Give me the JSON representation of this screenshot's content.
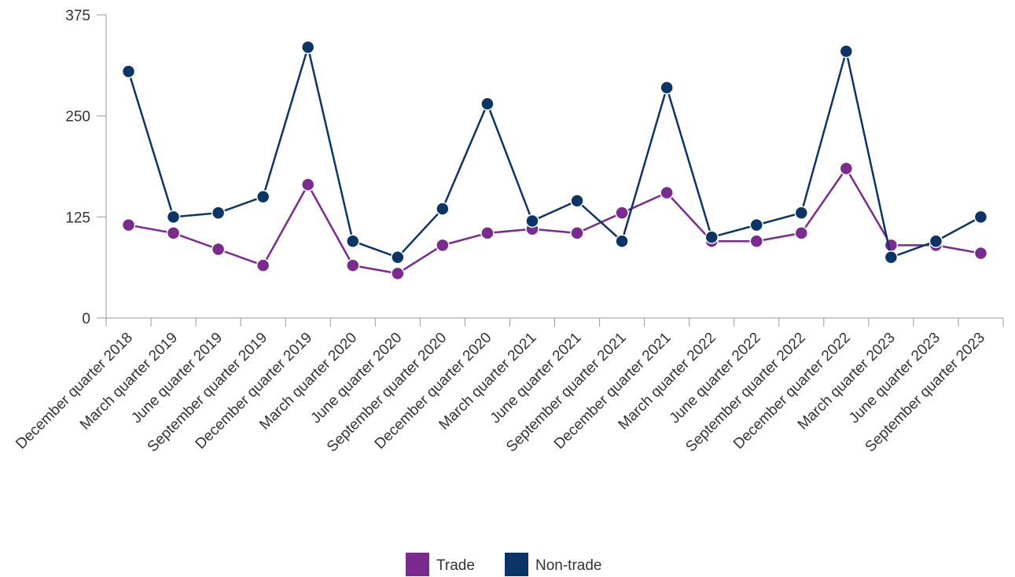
{
  "chart_data": {
    "type": "line",
    "categories": [
      "December quarter 2018",
      "March quarter 2019",
      "June quarter 2019",
      "September quarter 2019",
      "December quarter 2019",
      "March quarter 2020",
      "June quarter 2020",
      "September quarter 2020",
      "December quarter 2020",
      "March quarter 2021",
      "June quarter 2021",
      "September quarter 2021",
      "December quarter 2021",
      "March quarter 2022",
      "June quarter 2022",
      "September quarter 2022",
      "December quarter 2022",
      "March quarter 2023",
      "June quarter 2023",
      "September quarter 2023"
    ],
    "series": [
      {
        "name": "Trade",
        "color": "#7b2a8e",
        "values": [
          115,
          105,
          85,
          65,
          165,
          65,
          55,
          90,
          105,
          110,
          105,
          130,
          155,
          95,
          95,
          105,
          185,
          90,
          90,
          80
        ]
      },
      {
        "name": "Non-trade",
        "color": "#0b3566",
        "values": [
          305,
          125,
          130,
          150,
          335,
          95,
          75,
          135,
          265,
          120,
          145,
          95,
          285,
          100,
          115,
          130,
          330,
          75,
          95,
          125
        ]
      }
    ],
    "yticks": [
      "0",
      "125",
      "250",
      "375"
    ],
    "ylim": [
      0,
      375
    ],
    "grid": false,
    "legend_position": "bottom-center"
  }
}
